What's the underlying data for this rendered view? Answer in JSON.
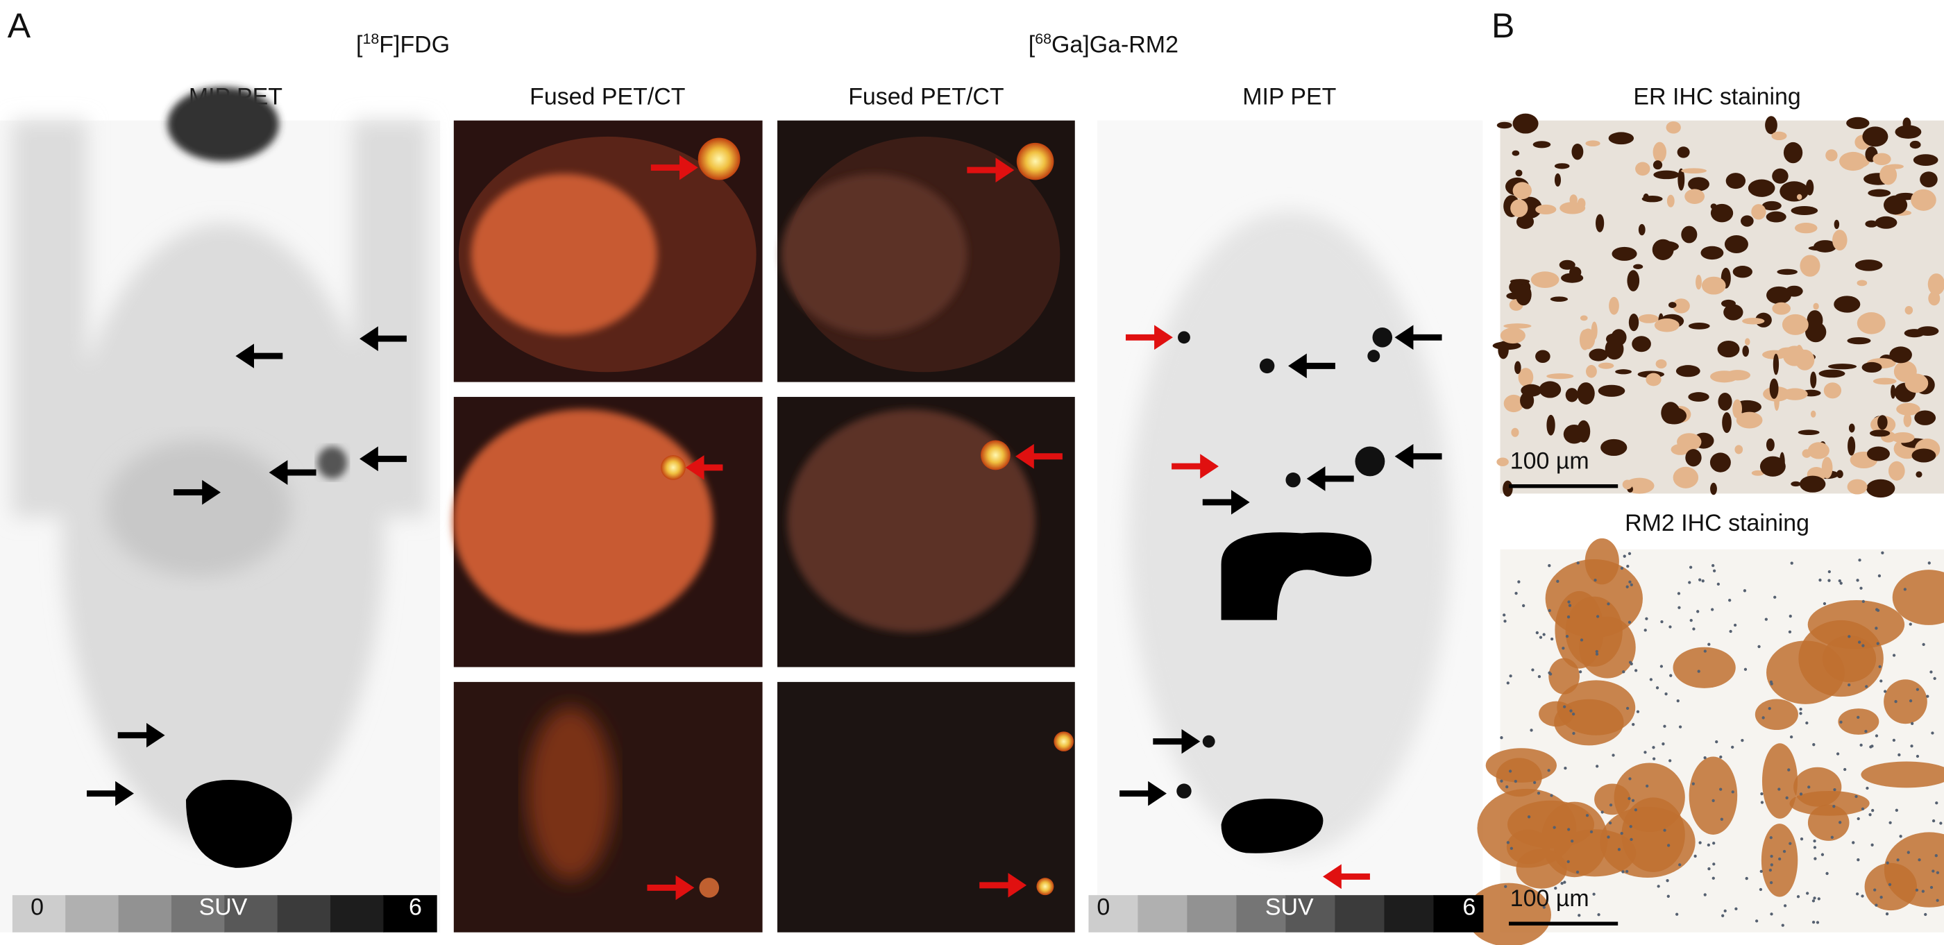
{
  "panel_a": {
    "label": "A",
    "tracer_left": {
      "open": "[",
      "sup": "18",
      "rest": "F]FDG"
    },
    "tracer_right": {
      "open": "[",
      "sup": "68",
      "rest": "Ga]Ga-RM2"
    },
    "columns": [
      "MIP PET",
      "Fused PET/CT",
      "Fused PET/CT",
      "MIP PET"
    ],
    "colorbar_left": {
      "min": 0,
      "label": "SUV",
      "max": 6
    },
    "colorbar_right": {
      "min": 0,
      "label": "SUV",
      "max": 6
    }
  },
  "panel_b": {
    "label": "B",
    "images": [
      {
        "title": "ER IHC staining",
        "scale_bar": "100 µm"
      },
      {
        "title": "RM2 IHC staining",
        "scale_bar": "100 µm"
      }
    ]
  }
}
